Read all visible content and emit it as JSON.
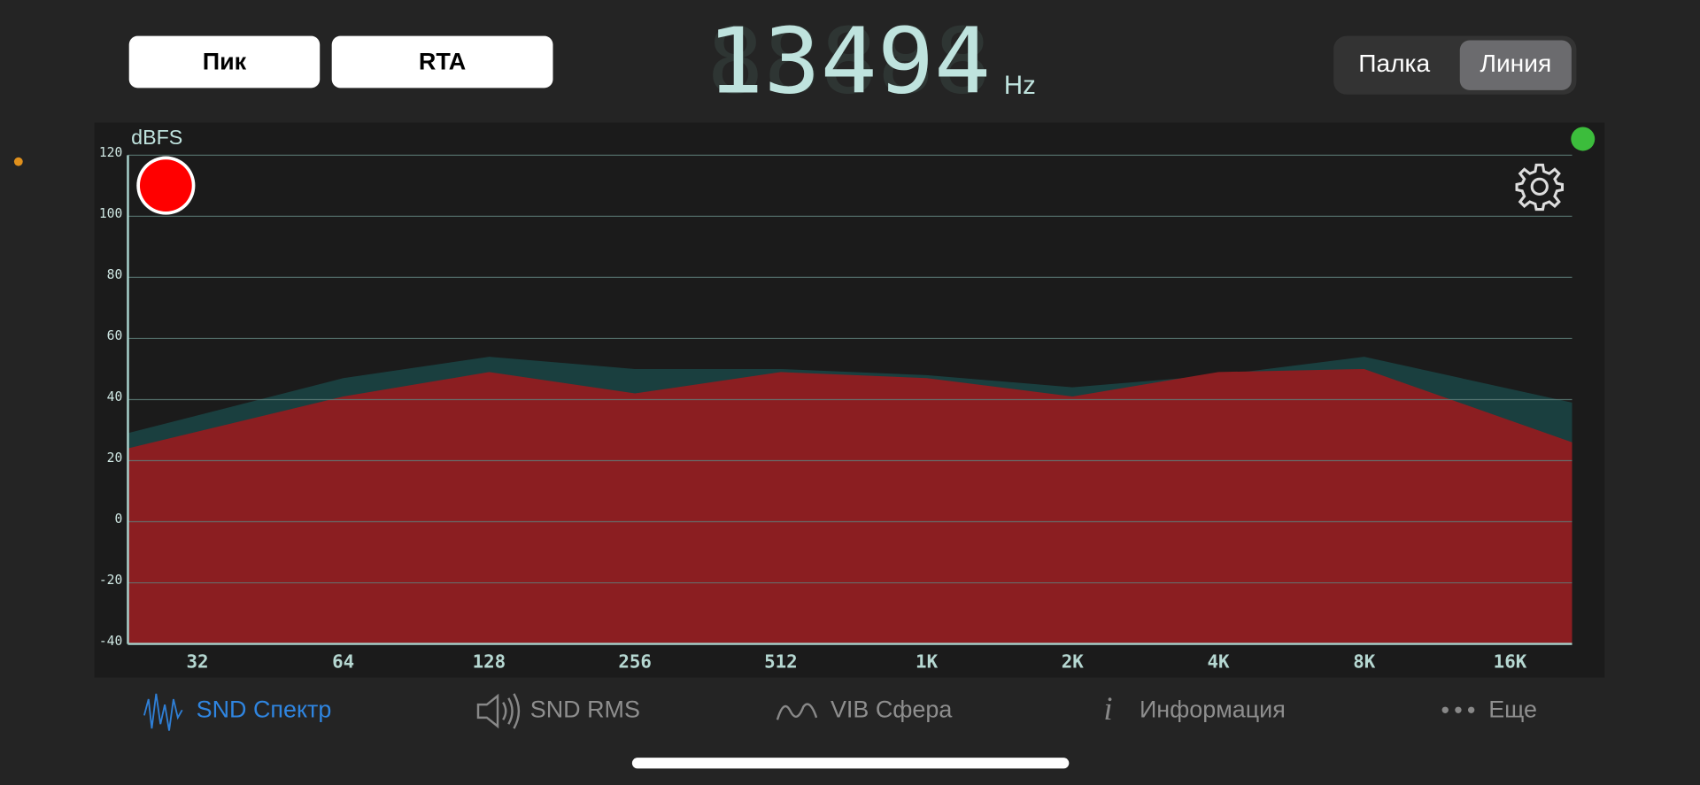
{
  "buttons": [
    "Пик",
    "RTA"
  ],
  "frequency_display": {
    "value": "13494",
    "unit": "Hz"
  },
  "view_toggle": {
    "options": [
      "Палка",
      "Линия"
    ],
    "selected_index": 1
  },
  "chart_data": {
    "type": "area",
    "y_label": "dBFS",
    "x_scale": "log",
    "x": [
      23,
      64,
      128,
      256,
      512,
      1024,
      2048,
      4096,
      8192,
      22000
    ],
    "xlim": [
      23,
      22000
    ],
    "xticks": [
      32,
      64,
      128,
      256,
      512,
      {
        "value": 1024,
        "label": "1K"
      },
      {
        "value": 2048,
        "label": "2K"
      },
      {
        "value": 4096,
        "label": "4K"
      },
      {
        "value": 8192,
        "label": "8K"
      },
      {
        "value": 16384,
        "label": "16K"
      }
    ],
    "ylim": [
      -40,
      120
    ],
    "yticks": [
      120,
      100,
      80,
      60,
      40,
      20,
      0,
      -20,
      -40
    ],
    "grid": true,
    "series": [
      {
        "color": "#1a3f3f",
        "values": [
          29,
          47,
          54,
          50,
          50,
          48,
          44,
          48,
          54,
          39
        ]
      },
      {
        "color": "#8b1e21",
        "values": [
          24,
          41,
          49,
          42,
          49,
          47,
          41,
          49,
          50,
          26
        ]
      }
    ]
  },
  "tabs": [
    {
      "label": "SND Спектр",
      "active": true
    },
    {
      "label": "SND RMS",
      "active": false
    },
    {
      "label": "VIB Сфера",
      "active": false
    },
    {
      "label": "Информация",
      "active": false
    },
    {
      "label": "Еще",
      "active": false
    }
  ]
}
